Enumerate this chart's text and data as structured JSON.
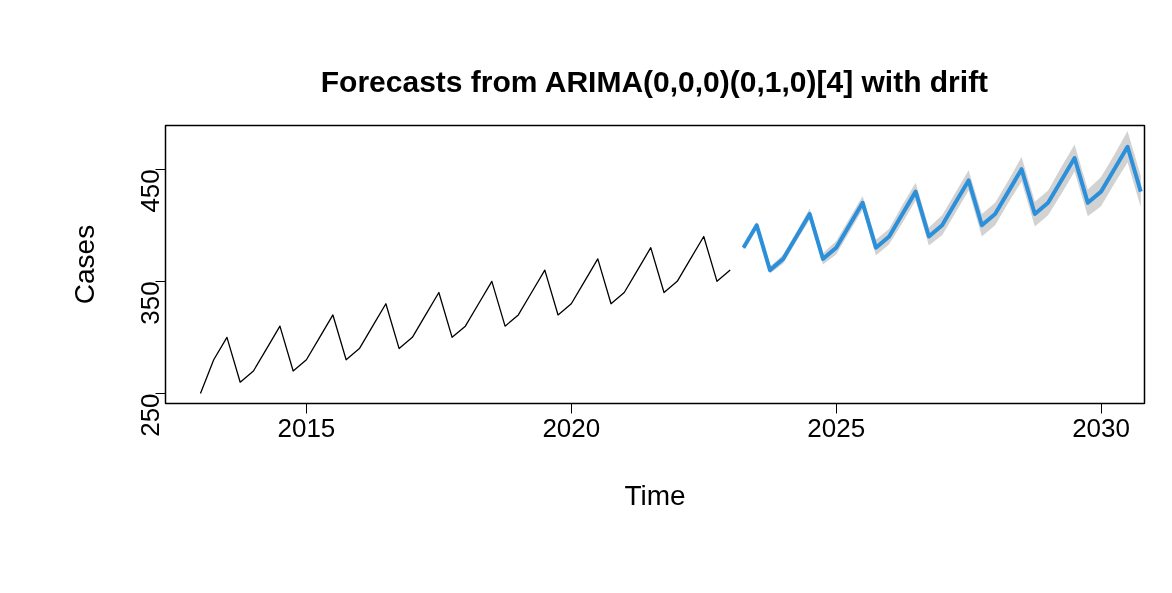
{
  "chart_data": {
    "type": "line",
    "title": "Forecasts from ARIMA(0,0,0)(0,1,0)[4] with drift",
    "xlabel": "Time",
    "ylabel": "Cases",
    "xlim": [
      2012.34,
      2030.82
    ],
    "ylim": [
      241,
      489
    ],
    "xticks": [
      2015,
      2020,
      2025,
      2030
    ],
    "yticks": [
      250,
      350,
      450
    ],
    "grid": false,
    "series": [
      {
        "color": "#000000",
        "x": [
          2013,
          2013.25,
          2013.5,
          2013.75,
          2014,
          2014.25,
          2014.5,
          2014.75,
          2015,
          2015.25,
          2015.5,
          2015.75,
          2016,
          2016.25,
          2016.5,
          2016.75,
          2017,
          2017.25,
          2017.5,
          2017.75,
          2018,
          2018.25,
          2018.5,
          2018.75,
          2019,
          2019.25,
          2019.5,
          2019.75,
          2020,
          2020.25,
          2020.5,
          2020.75,
          2021,
          2021.25,
          2021.5,
          2021.75,
          2022,
          2022.25,
          2022.5,
          2022.75,
          2023
        ],
        "values": [
          250,
          280,
          300,
          260,
          270,
          290,
          310,
          270,
          280,
          300,
          320,
          280,
          290,
          310,
          330,
          290,
          300,
          320,
          340,
          300,
          310,
          330,
          350,
          310,
          320,
          340,
          360,
          320,
          330,
          350,
          370,
          330,
          340,
          360,
          380,
          340,
          350,
          370,
          390,
          350,
          360
        ]
      },
      {
        "color": "#2b8fd9",
        "x": [
          2023.25,
          2023.5,
          2023.75,
          2024,
          2024.25,
          2024.5,
          2024.75,
          2025,
          2025.25,
          2025.5,
          2025.75,
          2026,
          2026.25,
          2026.5,
          2026.75,
          2027,
          2027.25,
          2027.5,
          2027.75,
          2028,
          2028.25,
          2028.5,
          2028.75,
          2029,
          2029.25,
          2029.5,
          2029.75,
          2030,
          2030.25,
          2030.5,
          2030.75
        ],
        "values": [
          380,
          400,
          360,
          370,
          390,
          410,
          370,
          380,
          400,
          420,
          380,
          390,
          410,
          430,
          390,
          400,
          420,
          440,
          400,
          410,
          430,
          450,
          410,
          420,
          440,
          460,
          420,
          430,
          450,
          470,
          430
        ],
        "lower": [
          378,
          397,
          357,
          366,
          386,
          405,
          365,
          374,
          394,
          414,
          373,
          383,
          402,
          422,
          382,
          391,
          411,
          431,
          390,
          400,
          420,
          439,
          399,
          409,
          428,
          448,
          408,
          417,
          437,
          456,
          416
        ],
        "upper": [
          382,
          403,
          363,
          374,
          394,
          415,
          375,
          386,
          406,
          426,
          387,
          397,
          418,
          438,
          398,
          409,
          429,
          449,
          410,
          420,
          440,
          461,
          421,
          431,
          452,
          472,
          432,
          443,
          463,
          484,
          444
        ]
      }
    ]
  }
}
